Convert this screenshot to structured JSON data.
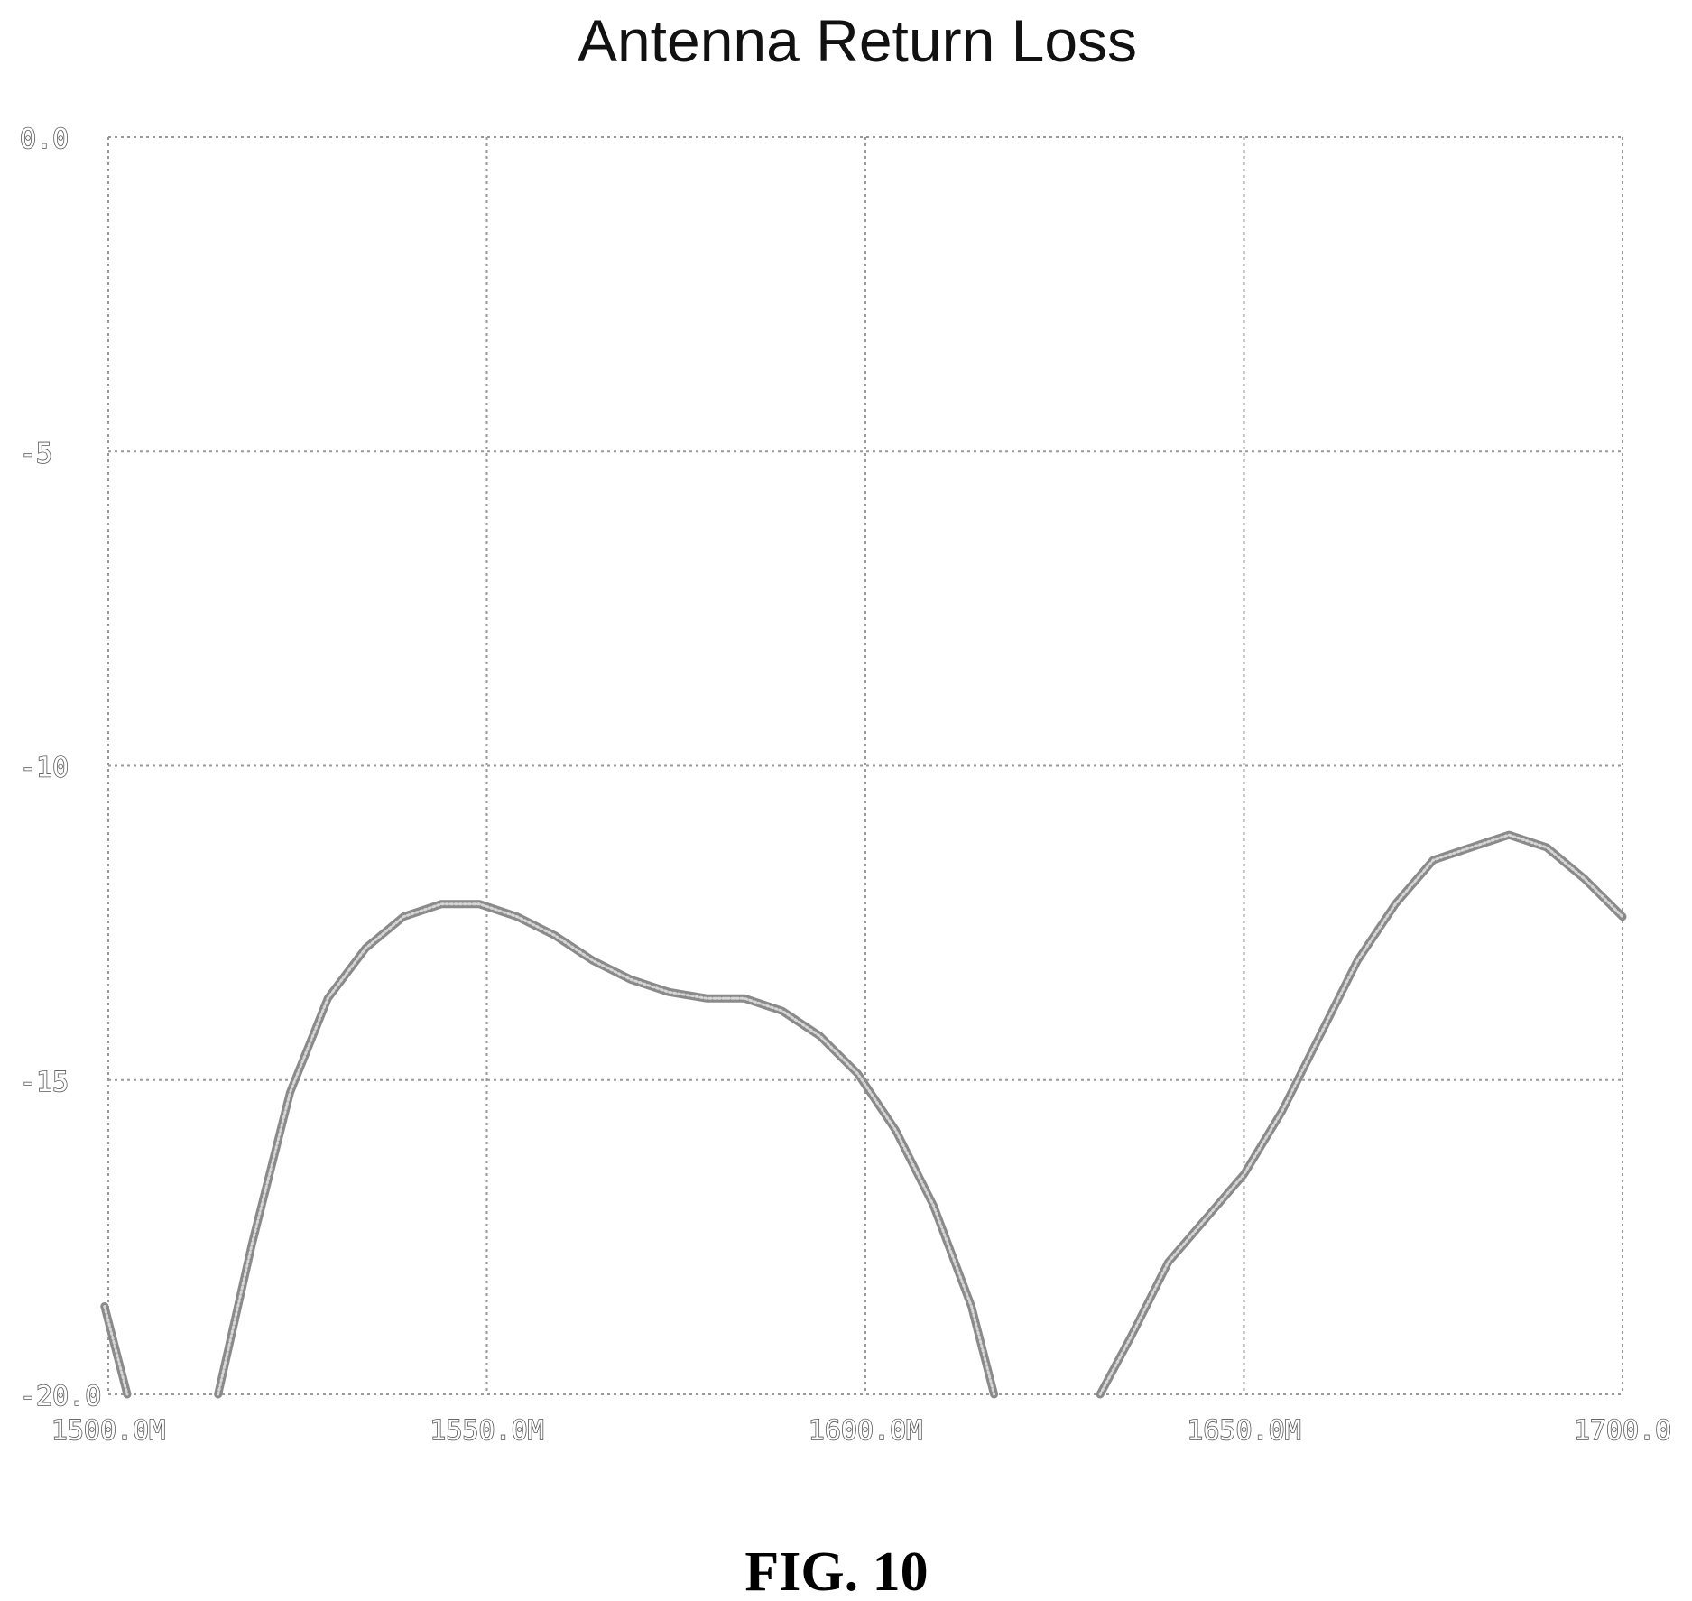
{
  "chart_data": {
    "type": "line",
    "title": "Antenna Return Loss",
    "xlabel": "",
    "ylabel": "",
    "xlim": [
      1500,
      1700
    ],
    "ylim": [
      -20,
      0
    ],
    "grid": true,
    "x_ticks": [
      {
        "value": 1500,
        "label": "1500.0M"
      },
      {
        "value": 1550,
        "label": "1550.0M"
      },
      {
        "value": 1600,
        "label": "1600.0M"
      },
      {
        "value": 1650,
        "label": "1650.0M"
      },
      {
        "value": 1700,
        "label": "1700.0"
      }
    ],
    "y_ticks": [
      {
        "value": 0,
        "label": "0.0"
      },
      {
        "value": -5,
        "label": "-5"
      },
      {
        "value": -10,
        "label": "-10"
      },
      {
        "value": -15,
        "label": "-15"
      },
      {
        "value": -20,
        "label": "-20.0"
      }
    ],
    "series": [
      {
        "segments": [
          [
            [
              1499.5,
              -18.6
            ],
            [
              1502.5,
              -20.0
            ]
          ],
          [
            [
              1514.5,
              -20.0
            ],
            [
              1519,
              -17.6
            ],
            [
              1524,
              -15.2
            ],
            [
              1529,
              -13.7
            ],
            [
              1534,
              -12.9
            ],
            [
              1539,
              -12.4
            ],
            [
              1544,
              -12.2
            ],
            [
              1549,
              -12.2
            ],
            [
              1554,
              -12.4
            ],
            [
              1559,
              -12.7
            ],
            [
              1564,
              -13.1
            ],
            [
              1569,
              -13.4
            ],
            [
              1574,
              -13.6
            ],
            [
              1579,
              -13.7
            ],
            [
              1584,
              -13.7
            ],
            [
              1589,
              -13.9
            ],
            [
              1594,
              -14.3
            ],
            [
              1599,
              -14.9
            ],
            [
              1604,
              -15.8
            ],
            [
              1609,
              -17.0
            ],
            [
              1614,
              -18.6
            ],
            [
              1617,
              -20.0
            ]
          ],
          [
            [
              1631,
              -20.0
            ],
            [
              1635,
              -19.1
            ],
            [
              1640,
              -17.9
            ],
            [
              1645,
              -17.2
            ],
            [
              1650,
              -16.5
            ],
            [
              1655,
              -15.5
            ],
            [
              1660,
              -14.3
            ],
            [
              1665,
              -13.1
            ],
            [
              1670,
              -12.2
            ],
            [
              1675,
              -11.5
            ],
            [
              1680,
              -11.3
            ],
            [
              1685,
              -11.1
            ],
            [
              1690,
              -11.3
            ],
            [
              1695,
              -11.8
            ],
            [
              1700,
              -12.4
            ]
          ]
        ]
      }
    ]
  },
  "caption": "FIG. 10"
}
